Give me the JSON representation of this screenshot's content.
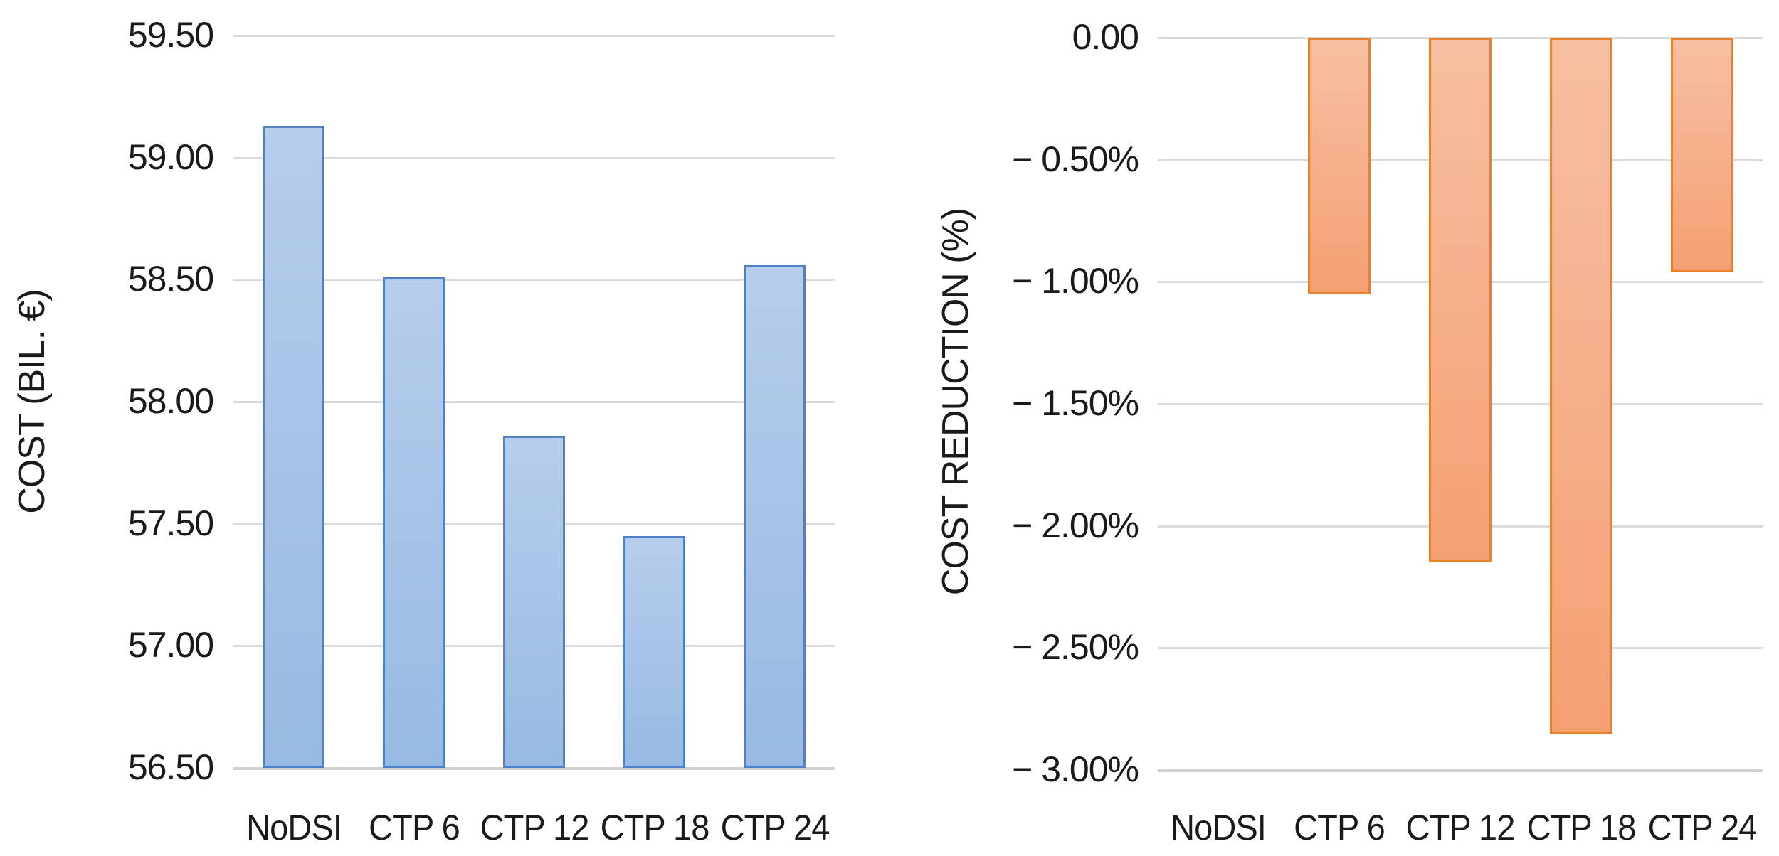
{
  "page": {
    "background": "#ffffff",
    "text_color": "#1a1a1a",
    "gridline_color": "#DCDCDC"
  },
  "chart_data": [
    {
      "type": "bar",
      "id": "cost",
      "title": "",
      "xlabel": "",
      "ylabel": "COST (BIL. €)",
      "categories": [
        "NoDSI",
        "CTP 6",
        "CTP 12",
        "CTP 18",
        "CTP 24"
      ],
      "values": [
        59.13,
        58.51,
        57.86,
        57.45,
        58.56
      ],
      "ylim": [
        56.5,
        59.5
      ],
      "y_step": 0.5,
      "tick_labels": [
        "59.50",
        "59.00",
        "58.50",
        "58.00",
        "57.50",
        "57.00",
        "56.50"
      ],
      "grid": "horizontal",
      "legend": "none",
      "baseline": "bottom",
      "bar_fill_top": "#B6CDEB",
      "bar_fill_bottom": "#97BAE2",
      "bar_border": "#4E82C4"
    },
    {
      "type": "bar",
      "id": "reduction",
      "title": "",
      "xlabel": "",
      "ylabel": "COST REDUCTION (%)",
      "categories": [
        "NoDSI",
        "CTP 6",
        "CTP 12",
        "CTP 18",
        "CTP 24"
      ],
      "values": [
        0.0,
        -1.05,
        -2.15,
        -2.85,
        -0.96
      ],
      "ylim": [
        -3.0,
        0.0
      ],
      "y_step": 0.5,
      "tick_labels": [
        "0.00",
        "− 0.50%",
        "− 1.00%",
        "− 1.50%",
        "− 2.00%",
        "− 2.50%",
        "− 3.00%"
      ],
      "grid": "horizontal",
      "legend": "none",
      "baseline": "top",
      "bar_fill_top": "#F7BFA2",
      "bar_fill_bottom": "#F5A073",
      "bar_border": "#E8802C"
    }
  ]
}
